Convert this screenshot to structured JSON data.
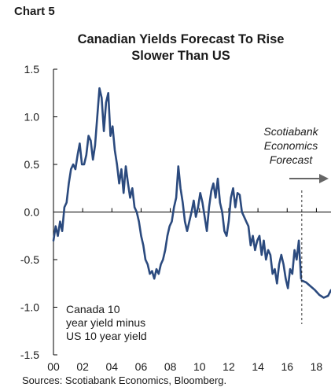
{
  "chart_label": "Chart 5",
  "sources": "Sources: Scotiabank Economics, Bloomberg.",
  "chart_data": {
    "type": "line",
    "title": [
      "Canadian Yields Forecast To Rise",
      "Slower Than US"
    ],
    "xlabel": "",
    "ylabel": "",
    "xlim": [
      2000,
      2019
    ],
    "ylim": [
      -1.5,
      1.5
    ],
    "x_ticks": [
      2000,
      2002,
      2004,
      2006,
      2008,
      2010,
      2012,
      2014,
      2016,
      2018
    ],
    "x_tick_labels": [
      "00",
      "02",
      "04",
      "06",
      "08",
      "10",
      "12",
      "14",
      "16",
      "18"
    ],
    "y_ticks": [
      1.5,
      1.0,
      0.5,
      0.0,
      -0.5,
      -1.0,
      -1.5
    ],
    "y_tick_labels": [
      "1.5",
      "1.0",
      "0.5",
      "0.0",
      "-0.5",
      "-1.0",
      "-1.5"
    ],
    "grid": false,
    "line_color": "#2b4a7e",
    "series": [
      {
        "x": [
          2000.0,
          2000.15,
          2000.3,
          2000.45,
          2000.6,
          2000.75,
          2000.9,
          2001.05,
          2001.2,
          2001.35,
          2001.5,
          2001.65,
          2001.8,
          2001.95,
          2002.1,
          2002.25,
          2002.4,
          2002.55,
          2002.7,
          2002.85,
          2003.0,
          2003.15,
          2003.3,
          2003.45,
          2003.6,
          2003.75,
          2003.9,
          2004.05,
          2004.2,
          2004.35,
          2004.5,
          2004.65,
          2004.8,
          2004.95,
          2005.1,
          2005.25,
          2005.4,
          2005.55,
          2005.7,
          2005.85,
          2006.0,
          2006.15,
          2006.3,
          2006.45,
          2006.6,
          2006.75,
          2006.9,
          2007.05,
          2007.2,
          2007.35,
          2007.5,
          2007.65,
          2007.8,
          2007.95,
          2008.1,
          2008.25,
          2008.4,
          2008.55,
          2008.7,
          2008.85,
          2009.0,
          2009.15,
          2009.3,
          2009.45,
          2009.6,
          2009.75,
          2009.9,
          2010.05,
          2010.2,
          2010.35,
          2010.5,
          2010.65,
          2010.8,
          2010.95,
          2011.1,
          2011.25,
          2011.4,
          2011.55,
          2011.7,
          2011.85,
          2012.0,
          2012.15,
          2012.3,
          2012.45,
          2012.6,
          2012.75,
          2012.9,
          2013.05,
          2013.2,
          2013.35,
          2013.5,
          2013.65,
          2013.8,
          2013.95,
          2014.1,
          2014.25,
          2014.4,
          2014.55,
          2014.7,
          2014.85,
          2015.0,
          2015.15,
          2015.3,
          2015.45,
          2015.6,
          2015.75,
          2015.9,
          2016.05,
          2016.2,
          2016.35,
          2016.5,
          2016.65,
          2016.8,
          2016.95
        ],
        "y": [
          -0.3,
          -0.15,
          -0.25,
          -0.1,
          -0.2,
          0.05,
          0.1,
          0.3,
          0.45,
          0.5,
          0.45,
          0.6,
          0.72,
          0.5,
          0.5,
          0.6,
          0.8,
          0.75,
          0.55,
          0.7,
          1.0,
          1.3,
          1.2,
          0.85,
          1.15,
          1.25,
          0.8,
          0.9,
          0.65,
          0.5,
          0.3,
          0.45,
          0.2,
          0.48,
          0.3,
          0.15,
          0.25,
          0.05,
          0.0,
          -0.1,
          -0.25,
          -0.35,
          -0.5,
          -0.55,
          -0.65,
          -0.62,
          -0.7,
          -0.6,
          -0.65,
          -0.55,
          -0.5,
          -0.4,
          -0.25,
          -0.15,
          -0.1,
          0.05,
          0.15,
          0.48,
          0.25,
          0.1,
          -0.1,
          -0.2,
          -0.1,
          0.0,
          0.12,
          -0.05,
          0.05,
          0.2,
          0.1,
          -0.05,
          -0.2,
          0.05,
          0.22,
          0.3,
          0.15,
          0.35,
          0.1,
          0.0,
          -0.2,
          -0.25,
          -0.1,
          0.15,
          0.25,
          0.05,
          0.2,
          0.18,
          0.0,
          -0.05,
          -0.1,
          -0.15,
          -0.35,
          -0.25,
          -0.4,
          -0.3,
          -0.25,
          -0.45,
          -0.3,
          -0.5,
          -0.4,
          -0.45,
          -0.65,
          -0.6,
          -0.75,
          -0.55,
          -0.45,
          -0.55,
          -0.7,
          -0.8,
          -0.6,
          -0.65,
          -0.4,
          -0.5,
          -0.3,
          -0.7
        ]
      },
      {
        "x": [
          2017.0,
          2017.3,
          2017.6,
          2017.9,
          2018.2,
          2018.5,
          2018.8,
          2019.0
        ],
        "y": [
          -0.72,
          -0.74,
          -0.78,
          -0.82,
          -0.87,
          -0.9,
          -0.88,
          -0.82
        ]
      }
    ],
    "annotations": {
      "forecast_text": [
        "Scotiabank",
        "Economics",
        "Forecast"
      ],
      "forecast_x": 2017.0,
      "legend_text": [
        "Canada 10",
        "year yield minus",
        "US 10 year yield"
      ]
    }
  }
}
